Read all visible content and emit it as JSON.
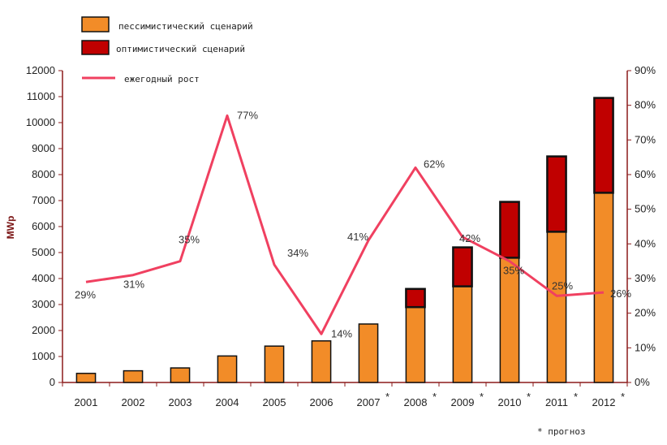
{
  "chart_data": {
    "type": "bar+line",
    "ylabel": "MWp",
    "ylim_left": [
      0,
      12000
    ],
    "ylim_right": [
      0,
      90
    ],
    "left_ticks": [
      0,
      1000,
      2000,
      3000,
      4000,
      5000,
      6000,
      7000,
      8000,
      9000,
      10000,
      11000,
      12000
    ],
    "right_ticks": [
      "0%",
      "10%",
      "20%",
      "30%",
      "40%",
      "50%",
      "60%",
      "70%",
      "80%",
      "90%"
    ],
    "categories": [
      "2001",
      "2002",
      "2003",
      "2004",
      "2005",
      "2006",
      "2007",
      "2008",
      "2009",
      "2010",
      "2011",
      "2012"
    ],
    "forecast_marks": [
      "",
      "",
      "",
      "",
      "",
      "",
      "*",
      "*",
      "*",
      "*",
      "*",
      "*"
    ],
    "legend": {
      "pessimistic": "пессимистический сценарий",
      "optimistic": "оптимистический сценарий",
      "growth": "ежегодный рост"
    },
    "series": [
      {
        "name": "пессимистический сценарий",
        "color": "#f28c28",
        "values": [
          350,
          450,
          560,
          1020,
          1400,
          1600,
          2250,
          2900,
          3700,
          4800,
          5800,
          7300
        ]
      },
      {
        "name": "оптимистический сценарий",
        "color": "#c00000",
        "values": [
          0,
          0,
          0,
          0,
          0,
          0,
          0,
          700,
          1500,
          2150,
          2900,
          3650
        ]
      },
      {
        "name": "ежегодный рост",
        "color": "#f04060",
        "values": [
          29,
          31,
          35,
          77,
          34,
          14,
          41,
          62,
          42,
          35,
          25,
          26
        ],
        "labels": [
          "29%",
          "31%",
          "35%",
          "77%",
          "34%",
          "14%",
          "41%",
          "62%",
          "42%",
          "35%",
          "25%",
          "26%"
        ]
      }
    ],
    "footnote": "* прогноз",
    "grid": false,
    "legend_position": "top-left"
  }
}
